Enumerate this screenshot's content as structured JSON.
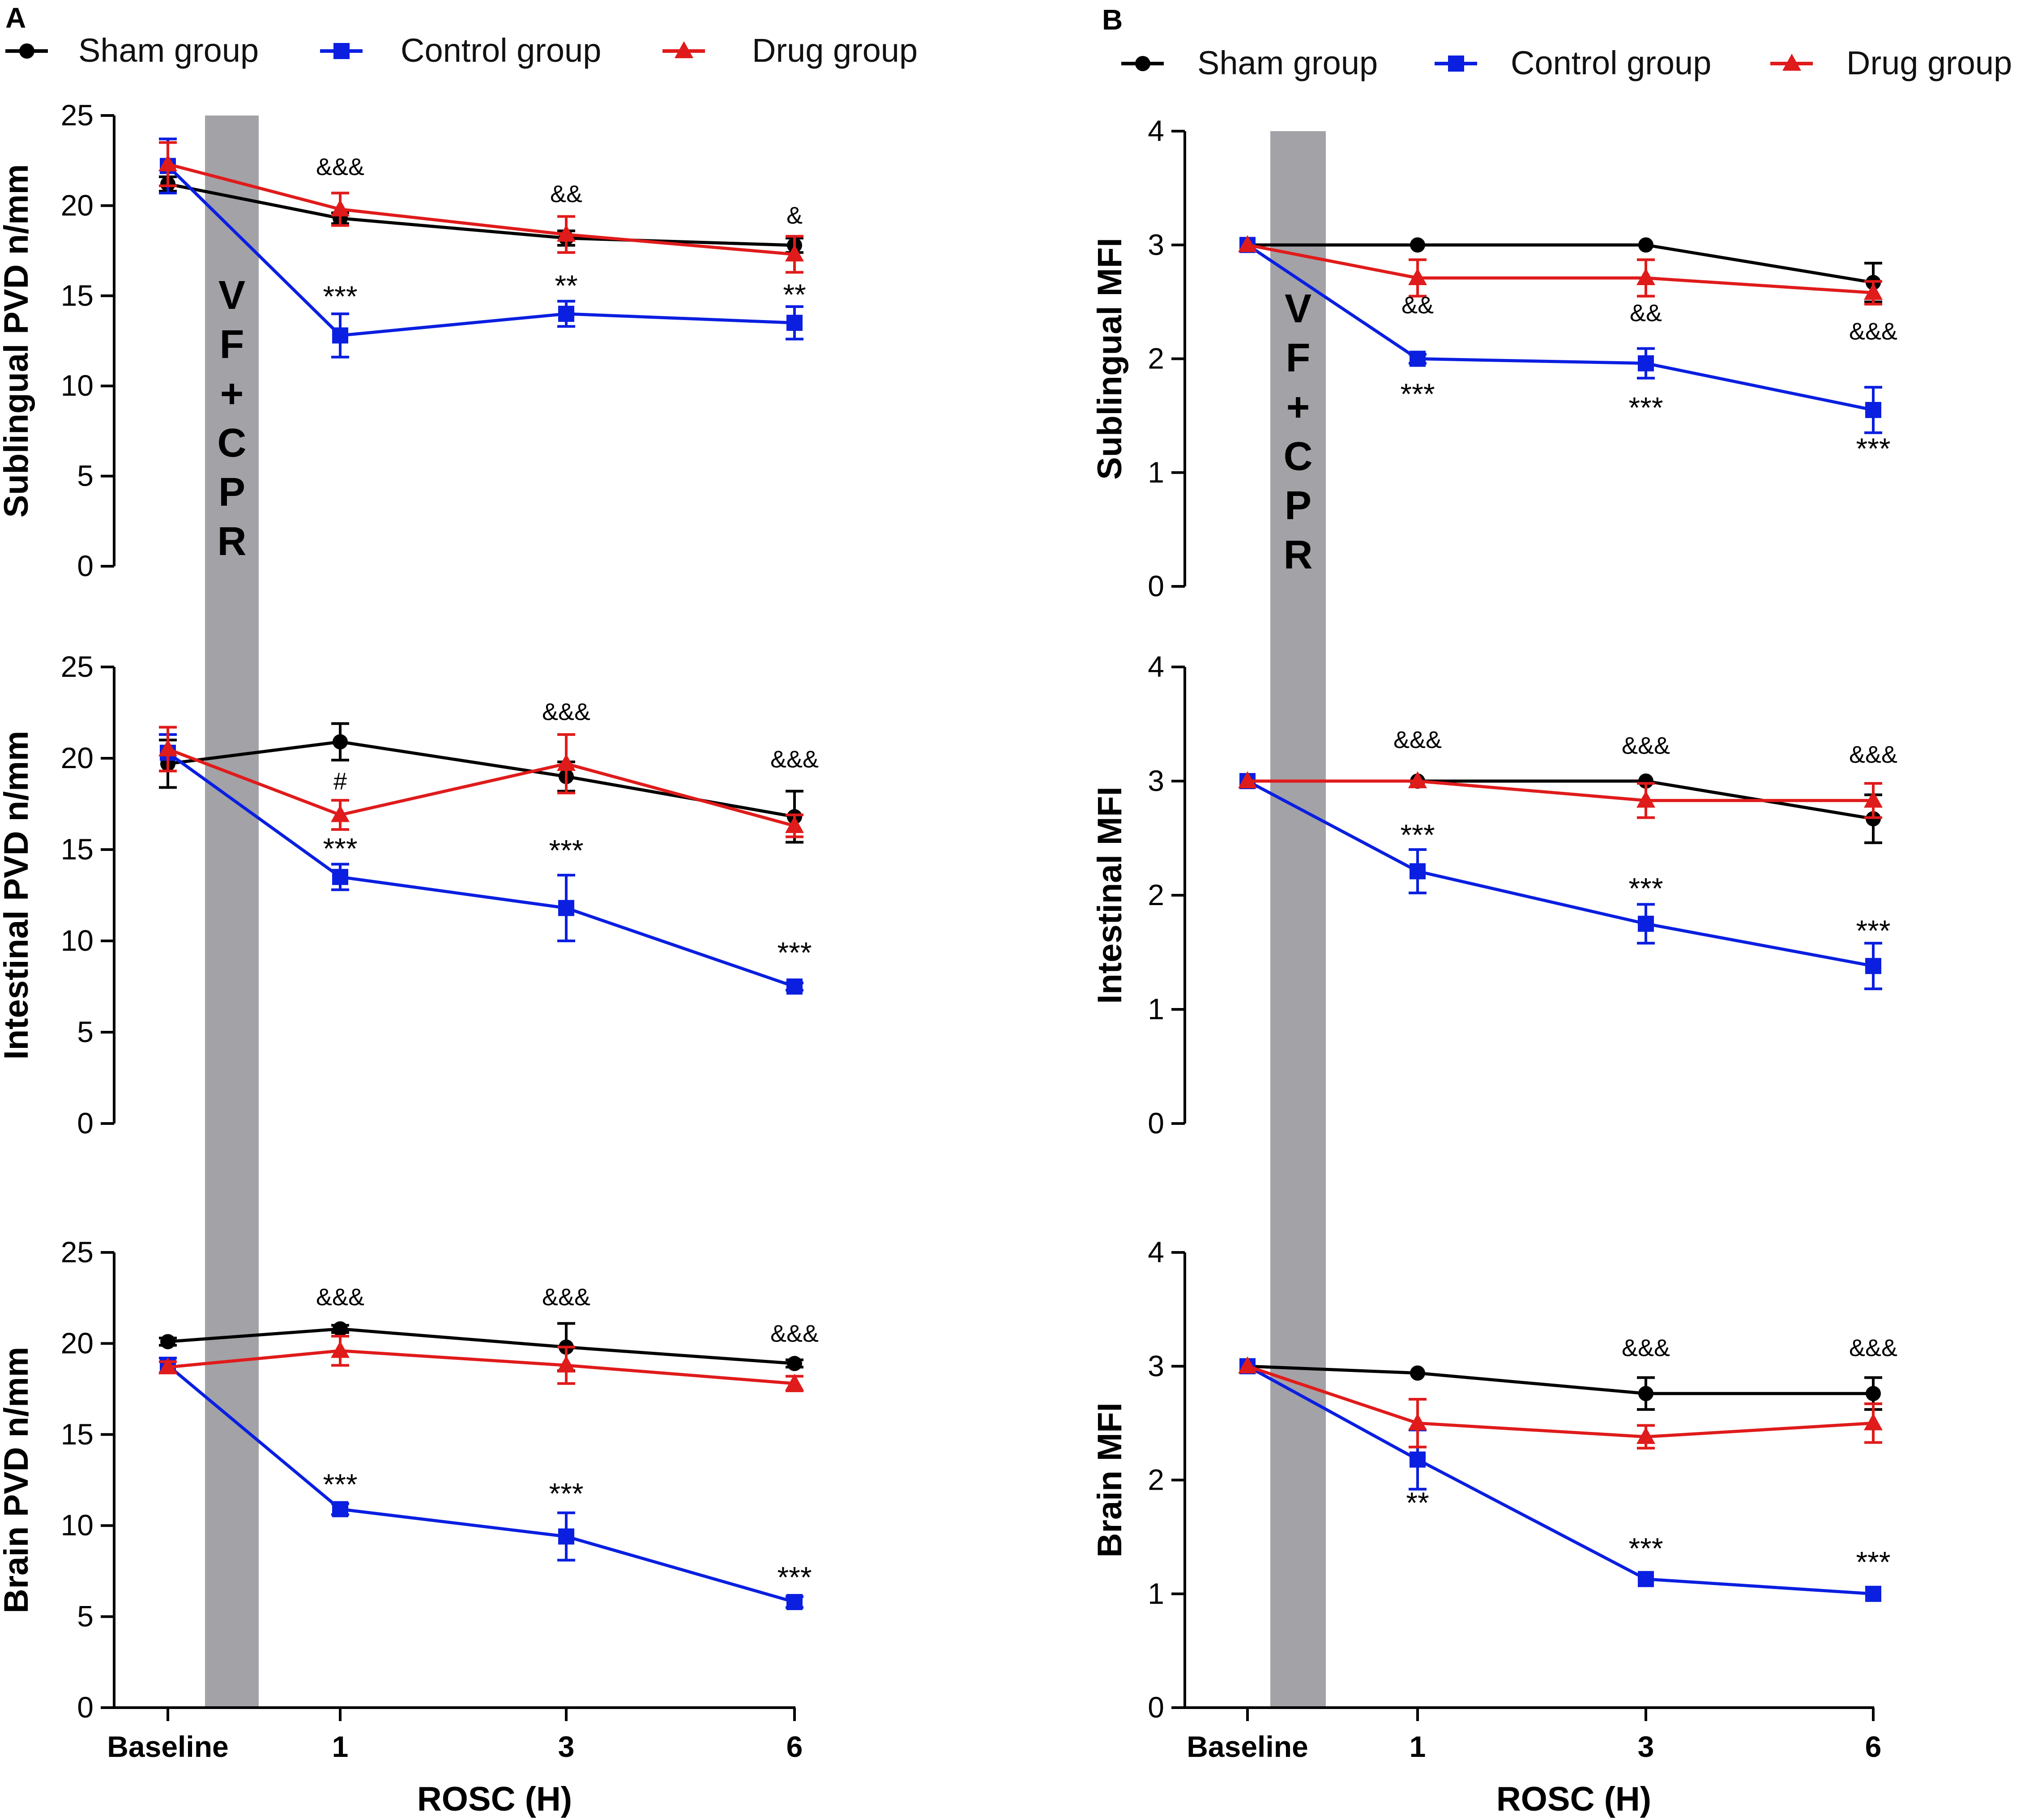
{
  "chart_data": {
    "type": "line",
    "x_categories": [
      "Baseline",
      "1",
      "3",
      "6"
    ],
    "xlabel": "ROSC (H)",
    "intervention_band": {
      "label": [
        "V",
        "F",
        "+",
        "C",
        "P",
        "R"
      ],
      "color": "#a3a2a7"
    },
    "series_styles": [
      {
        "name": "Sham group",
        "color": "#000000",
        "marker": "circle"
      },
      {
        "name": "Control group",
        "color": "#0a1fe0",
        "marker": "square"
      },
      {
        "name": "Drug group",
        "color": "#e01b1b",
        "marker": "triangle"
      }
    ],
    "panels": [
      {
        "letter": "A",
        "legend": [
          "Sham group",
          "Control group",
          "Drug group"
        ],
        "charts": [
          {
            "ylabel": "Sublingual PVD n/mm",
            "ylim": [
              0,
              25
            ],
            "yticks": [
              "0",
              "5",
              "10",
              "15",
              "20",
              "25"
            ],
            "series": [
              {
                "name": "Sham group",
                "values": [
                  21.2,
                  19.3,
                  18.2,
                  17.8
                ],
                "errors": [
                  0.4,
                  0.3,
                  0.4,
                  0.4
                ]
              },
              {
                "name": "Control group",
                "values": [
                  22.2,
                  12.8,
                  14.0,
                  13.5
                ],
                "errors": [
                  1.5,
                  1.2,
                  0.7,
                  0.9
                ]
              },
              {
                "name": "Drug group",
                "values": [
                  22.3,
                  19.8,
                  18.4,
                  17.3
                ],
                "errors": [
                  1.2,
                  0.9,
                  1.0,
                  1.0
                ]
              }
            ],
            "annotations": [
              {
                "text": "&&&",
                "x": "1",
                "y": 21.7,
                "style": "small"
              },
              {
                "text": "&&",
                "x": "3",
                "y": 20.2,
                "style": "small"
              },
              {
                "text": "&",
                "x": "6",
                "y": 19.0,
                "style": "small"
              },
              {
                "text": "***",
                "x": "1",
                "y": 14.4,
                "style": "big"
              },
              {
                "text": "**",
                "x": "3",
                "y": 15.0,
                "style": "big"
              },
              {
                "text": "**",
                "x": "6",
                "y": 14.5,
                "style": "big"
              }
            ]
          },
          {
            "ylabel": "Intestinal PVD n/mm",
            "ylim": [
              0,
              25
            ],
            "yticks": [
              "0",
              "5",
              "10",
              "15",
              "20",
              "25"
            ],
            "series": [
              {
                "name": "Sham group",
                "values": [
                  19.7,
                  20.9,
                  19.0,
                  16.8
                ],
                "errors": [
                  1.3,
                  1.0,
                  0.8,
                  1.4
                ]
              },
              {
                "name": "Control group",
                "values": [
                  20.3,
                  13.5,
                  11.8,
                  7.5
                ],
                "errors": [
                  1.0,
                  0.7,
                  1.8,
                  0.2
                ]
              },
              {
                "name": "Drug group",
                "values": [
                  20.5,
                  16.9,
                  19.7,
                  16.3
                ],
                "errors": [
                  1.2,
                  0.8,
                  1.6,
                  0.6
                ]
              }
            ],
            "annotations": [
              {
                "text": "&&&",
                "x": "3",
                "y": 22.1,
                "style": "small"
              },
              {
                "text": "&&&",
                "x": "6",
                "y": 19.5,
                "style": "small"
              },
              {
                "text": "#",
                "x": "1",
                "y": 18.3,
                "style": "small"
              },
              {
                "text": "***",
                "x": "1",
                "y": 14.5,
                "style": "big"
              },
              {
                "text": "***",
                "x": "3",
                "y": 14.4,
                "style": "big"
              },
              {
                "text": "***",
                "x": "6",
                "y": 8.8,
                "style": "big"
              }
            ]
          },
          {
            "ylabel": "Brain PVD n/mm",
            "ylim": [
              0,
              25
            ],
            "yticks": [
              "0",
              "5",
              "10",
              "15",
              "20",
              "25"
            ],
            "series": [
              {
                "name": "Sham group",
                "values": [
                  20.1,
                  20.8,
                  19.8,
                  18.9
                ],
                "errors": [
                  0.2,
                  0.2,
                  1.3,
                  0.2
                ]
              },
              {
                "name": "Control group",
                "values": [
                  18.8,
                  10.9,
                  9.4,
                  5.8
                ],
                "errors": [
                  0.4,
                  0.3,
                  1.3,
                  0.3
                ]
              },
              {
                "name": "Drug group",
                "values": [
                  18.7,
                  19.6,
                  18.8,
                  17.8
                ],
                "errors": [
                  0.3,
                  0.8,
                  1.0,
                  0.4
                ]
              }
            ],
            "annotations": [
              {
                "text": "&&&",
                "x": "1",
                "y": 22.1,
                "style": "small"
              },
              {
                "text": "&&&",
                "x": "3",
                "y": 22.1,
                "style": "small"
              },
              {
                "text": "&&&",
                "x": "6",
                "y": 20.1,
                "style": "small"
              },
              {
                "text": "***",
                "x": "1",
                "y": 11.7,
                "style": "big"
              },
              {
                "text": "***",
                "x": "3",
                "y": 11.2,
                "style": "big"
              },
              {
                "text": "***",
                "x": "6",
                "y": 6.6,
                "style": "big"
              }
            ]
          }
        ]
      },
      {
        "letter": "B",
        "legend": [
          "Sham group",
          "Control group",
          "Drug group"
        ],
        "charts": [
          {
            "ylabel": "Sublingual MFI",
            "ylim": [
              0,
              4
            ],
            "yticks": [
              "0",
              "1",
              "2",
              "3",
              "4"
            ],
            "series": [
              {
                "name": "Sham group",
                "values": [
                  3.0,
                  3.0,
                  3.0,
                  2.67
                ],
                "errors": [
                  0.0,
                  0.0,
                  0.0,
                  0.17
                ]
              },
              {
                "name": "Control group",
                "values": [
                  3.0,
                  2.0,
                  1.96,
                  1.55
                ],
                "errors": [
                  0.0,
                  0.04,
                  0.13,
                  0.2
                ]
              },
              {
                "name": "Drug group",
                "values": [
                  3.0,
                  2.71,
                  2.71,
                  2.58
                ],
                "errors": [
                  0.0,
                  0.16,
                  0.16,
                  0.1
                ]
              }
            ],
            "annotations": [
              {
                "text": "&&",
                "x": "1",
                "y": 2.4,
                "style": "small"
              },
              {
                "text": "&&",
                "x": "3",
                "y": 2.33,
                "style": "small"
              },
              {
                "text": "&&&",
                "x": "6",
                "y": 2.17,
                "style": "small"
              },
              {
                "text": "***",
                "x": "1",
                "y": 1.6,
                "style": "big"
              },
              {
                "text": "***",
                "x": "3",
                "y": 1.48,
                "style": "big"
              },
              {
                "text": "***",
                "x": "6",
                "y": 1.12,
                "style": "big"
              }
            ]
          },
          {
            "ylabel": "Intestinal MFI",
            "ylim": [
              0,
              4
            ],
            "yticks": [
              "0",
              "1",
              "2",
              "3",
              "4"
            ],
            "series": [
              {
                "name": "Sham group",
                "values": [
                  3.0,
                  3.0,
                  3.0,
                  2.67
                ],
                "errors": [
                  0.0,
                  0.0,
                  0.0,
                  0.21
                ]
              },
              {
                "name": "Control group",
                "values": [
                  3.0,
                  2.21,
                  1.75,
                  1.38
                ],
                "errors": [
                  0.0,
                  0.19,
                  0.17,
                  0.2
                ]
              },
              {
                "name": "Drug group",
                "values": [
                  3.0,
                  3.0,
                  2.83,
                  2.83
                ],
                "errors": [
                  0.0,
                  0.0,
                  0.15,
                  0.15
                ]
              }
            ],
            "annotations": [
              {
                "text": "&&&",
                "x": "1",
                "y": 3.29,
                "style": "small"
              },
              {
                "text": "&&&",
                "x": "3",
                "y": 3.24,
                "style": "small"
              },
              {
                "text": "&&&",
                "x": "6",
                "y": 3.16,
                "style": "small"
              },
              {
                "text": "***",
                "x": "1",
                "y": 2.44,
                "style": "big"
              },
              {
                "text": "***",
                "x": "3",
                "y": 1.97,
                "style": "big"
              },
              {
                "text": "***",
                "x": "6",
                "y": 1.6,
                "style": "big"
              }
            ]
          },
          {
            "ylabel": "Brain MFI",
            "ylim": [
              0,
              4
            ],
            "yticks": [
              "0",
              "1",
              "2",
              "3",
              "4"
            ],
            "series": [
              {
                "name": "Sham group",
                "values": [
                  3.0,
                  2.94,
                  2.76,
                  2.76
                ],
                "errors": [
                  0.0,
                  0.0,
                  0.14,
                  0.14
                ]
              },
              {
                "name": "Control group",
                "values": [
                  3.0,
                  2.18,
                  1.13,
                  1.0
                ],
                "errors": [
                  0.0,
                  0.26,
                  0.0,
                  0.0
                ]
              },
              {
                "name": "Drug group",
                "values": [
                  3.0,
                  2.5,
                  2.38,
                  2.5
                ],
                "errors": [
                  0.0,
                  0.21,
                  0.1,
                  0.17
                ]
              }
            ],
            "annotations": [
              {
                "text": "&&&",
                "x": "3",
                "y": 3.09,
                "style": "small"
              },
              {
                "text": "&&&",
                "x": "6",
                "y": 3.09,
                "style": "small"
              },
              {
                "text": "**",
                "x": "1",
                "y": 1.71,
                "style": "big"
              },
              {
                "text": "***",
                "x": "3",
                "y": 1.31,
                "style": "big"
              },
              {
                "text": "***",
                "x": "6",
                "y": 1.19,
                "style": "big"
              }
            ]
          }
        ]
      }
    ]
  }
}
